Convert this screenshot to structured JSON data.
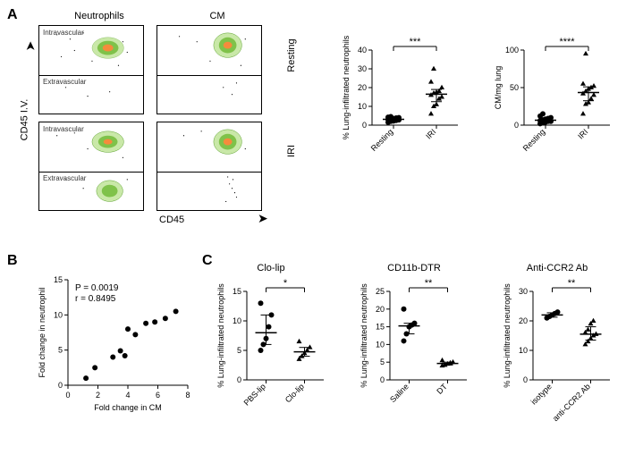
{
  "panelA": {
    "label": "A",
    "flow": {
      "col1": "Neutrophils",
      "col2": "CM",
      "row1": "Resting",
      "row2": "IRI",
      "yaxis": "CD45 I.V.",
      "xaxis": "CD45",
      "intravascular": "Intravascular",
      "extravascular": "Extravascular"
    },
    "chart1": {
      "ylabel": "% Lung-infiltrated neutrophils",
      "groups": [
        "Resting",
        "IRI"
      ],
      "ylim": [
        0,
        40
      ],
      "ytick_step": 10,
      "data": {
        "Resting": [
          1.5,
          2,
          2.2,
          2.5,
          2.8,
          3,
          3.2,
          3.5,
          3.8,
          4,
          4.2,
          4.5
        ],
        "IRI": [
          6,
          10,
          11,
          14,
          15,
          16,
          17,
          17.5,
          18,
          20,
          23,
          30
        ]
      },
      "markers": {
        "Resting": "circle",
        "IRI": "triangle"
      },
      "sig": "***",
      "median_color": "#000000",
      "whisker_color": "#000000",
      "marker_fill": "#000000",
      "label_fontsize": 9
    },
    "chart2": {
      "ylabel": "CM/mg lung",
      "groups": [
        "Resting",
        "IRI"
      ],
      "ylim": [
        0,
        100
      ],
      "ytick_step": 50,
      "data": {
        "Resting": [
          2,
          3,
          4,
          5,
          5,
          6,
          7,
          8,
          9,
          10,
          12,
          15
        ],
        "IRI": [
          15,
          28,
          30,
          35,
          40,
          42,
          45,
          48,
          50,
          52,
          55,
          95
        ]
      },
      "markers": {
        "Resting": "circle",
        "IRI": "triangle"
      },
      "sig": "****",
      "marker_fill": "#000000",
      "label_fontsize": 9
    }
  },
  "panelB": {
    "label": "B",
    "chart": {
      "xlabel": "Fold change in CM",
      "ylabel": "Fold change in neutrophil",
      "xlim": [
        0,
        8
      ],
      "xtick_step": 2,
      "ylim": [
        0,
        15
      ],
      "ytick_step": 5,
      "points": [
        [
          1.2,
          1.0
        ],
        [
          1.8,
          2.5
        ],
        [
          3.0,
          4.0
        ],
        [
          3.5,
          4.9
        ],
        [
          3.8,
          4.2
        ],
        [
          4.0,
          8.0
        ],
        [
          4.5,
          7.2
        ],
        [
          5.2,
          8.8
        ],
        [
          5.8,
          9.0
        ],
        [
          6.5,
          9.5
        ],
        [
          7.2,
          10.5
        ]
      ],
      "p_text": "P = 0.0019",
      "r_text": "r = 0.8495",
      "marker": "circle",
      "marker_fill": "#000000",
      "label_fontsize": 9
    }
  },
  "panelC": {
    "label": "C",
    "charts": [
      {
        "title": "Clo-lip",
        "ylabel": "% Lung-infiltrated neutrophils",
        "groups": [
          "PBS-lip",
          "Clo-lip"
        ],
        "ylim": [
          0,
          15
        ],
        "ytick_step": 5,
        "data": {
          "PBS-lip": [
            5,
            6,
            7,
            9,
            11,
            13
          ],
          "Clo-lip": [
            3.5,
            4,
            4.5,
            5,
            5.5,
            6.5
          ]
        },
        "markers": {
          "PBS-lip": "circle",
          "Clo-lip": "triangle"
        },
        "sig": "*",
        "label_fontsize": 9
      },
      {
        "title": "CD11b-DTR",
        "ylabel": "% Lung-infiltrated neutrophils",
        "groups": [
          "Saline",
          "DT"
        ],
        "ylim": [
          0,
          25
        ],
        "ytick_step": 5,
        "data": {
          "Saline": [
            11,
            13,
            15,
            15.5,
            16,
            20
          ],
          "DT": [
            4,
            4.2,
            4.5,
            4.8,
            5,
            5.5
          ]
        },
        "markers": {
          "Saline": "circle",
          "DT": "triangle"
        },
        "sig": "**",
        "label_fontsize": 9
      },
      {
        "title": "Anti-CCR2 Ab",
        "ylabel": "% Lung-infiltrated neutrophils",
        "groups": [
          "isotype",
          "anti-CCR2 Ab"
        ],
        "ylim": [
          0,
          30
        ],
        "ytick_step": 10,
        "data": {
          "isotype": [
            21,
            21.5,
            22,
            22.5,
            23
          ],
          "anti-CCR2 Ab": [
            12,
            13,
            14,
            15,
            15.5,
            16,
            17,
            19,
            20
          ]
        },
        "markers": {
          "isotype": "circle",
          "anti-CCR2 Ab": "triangle"
        },
        "sig": "**",
        "label_fontsize": 9
      }
    ]
  }
}
